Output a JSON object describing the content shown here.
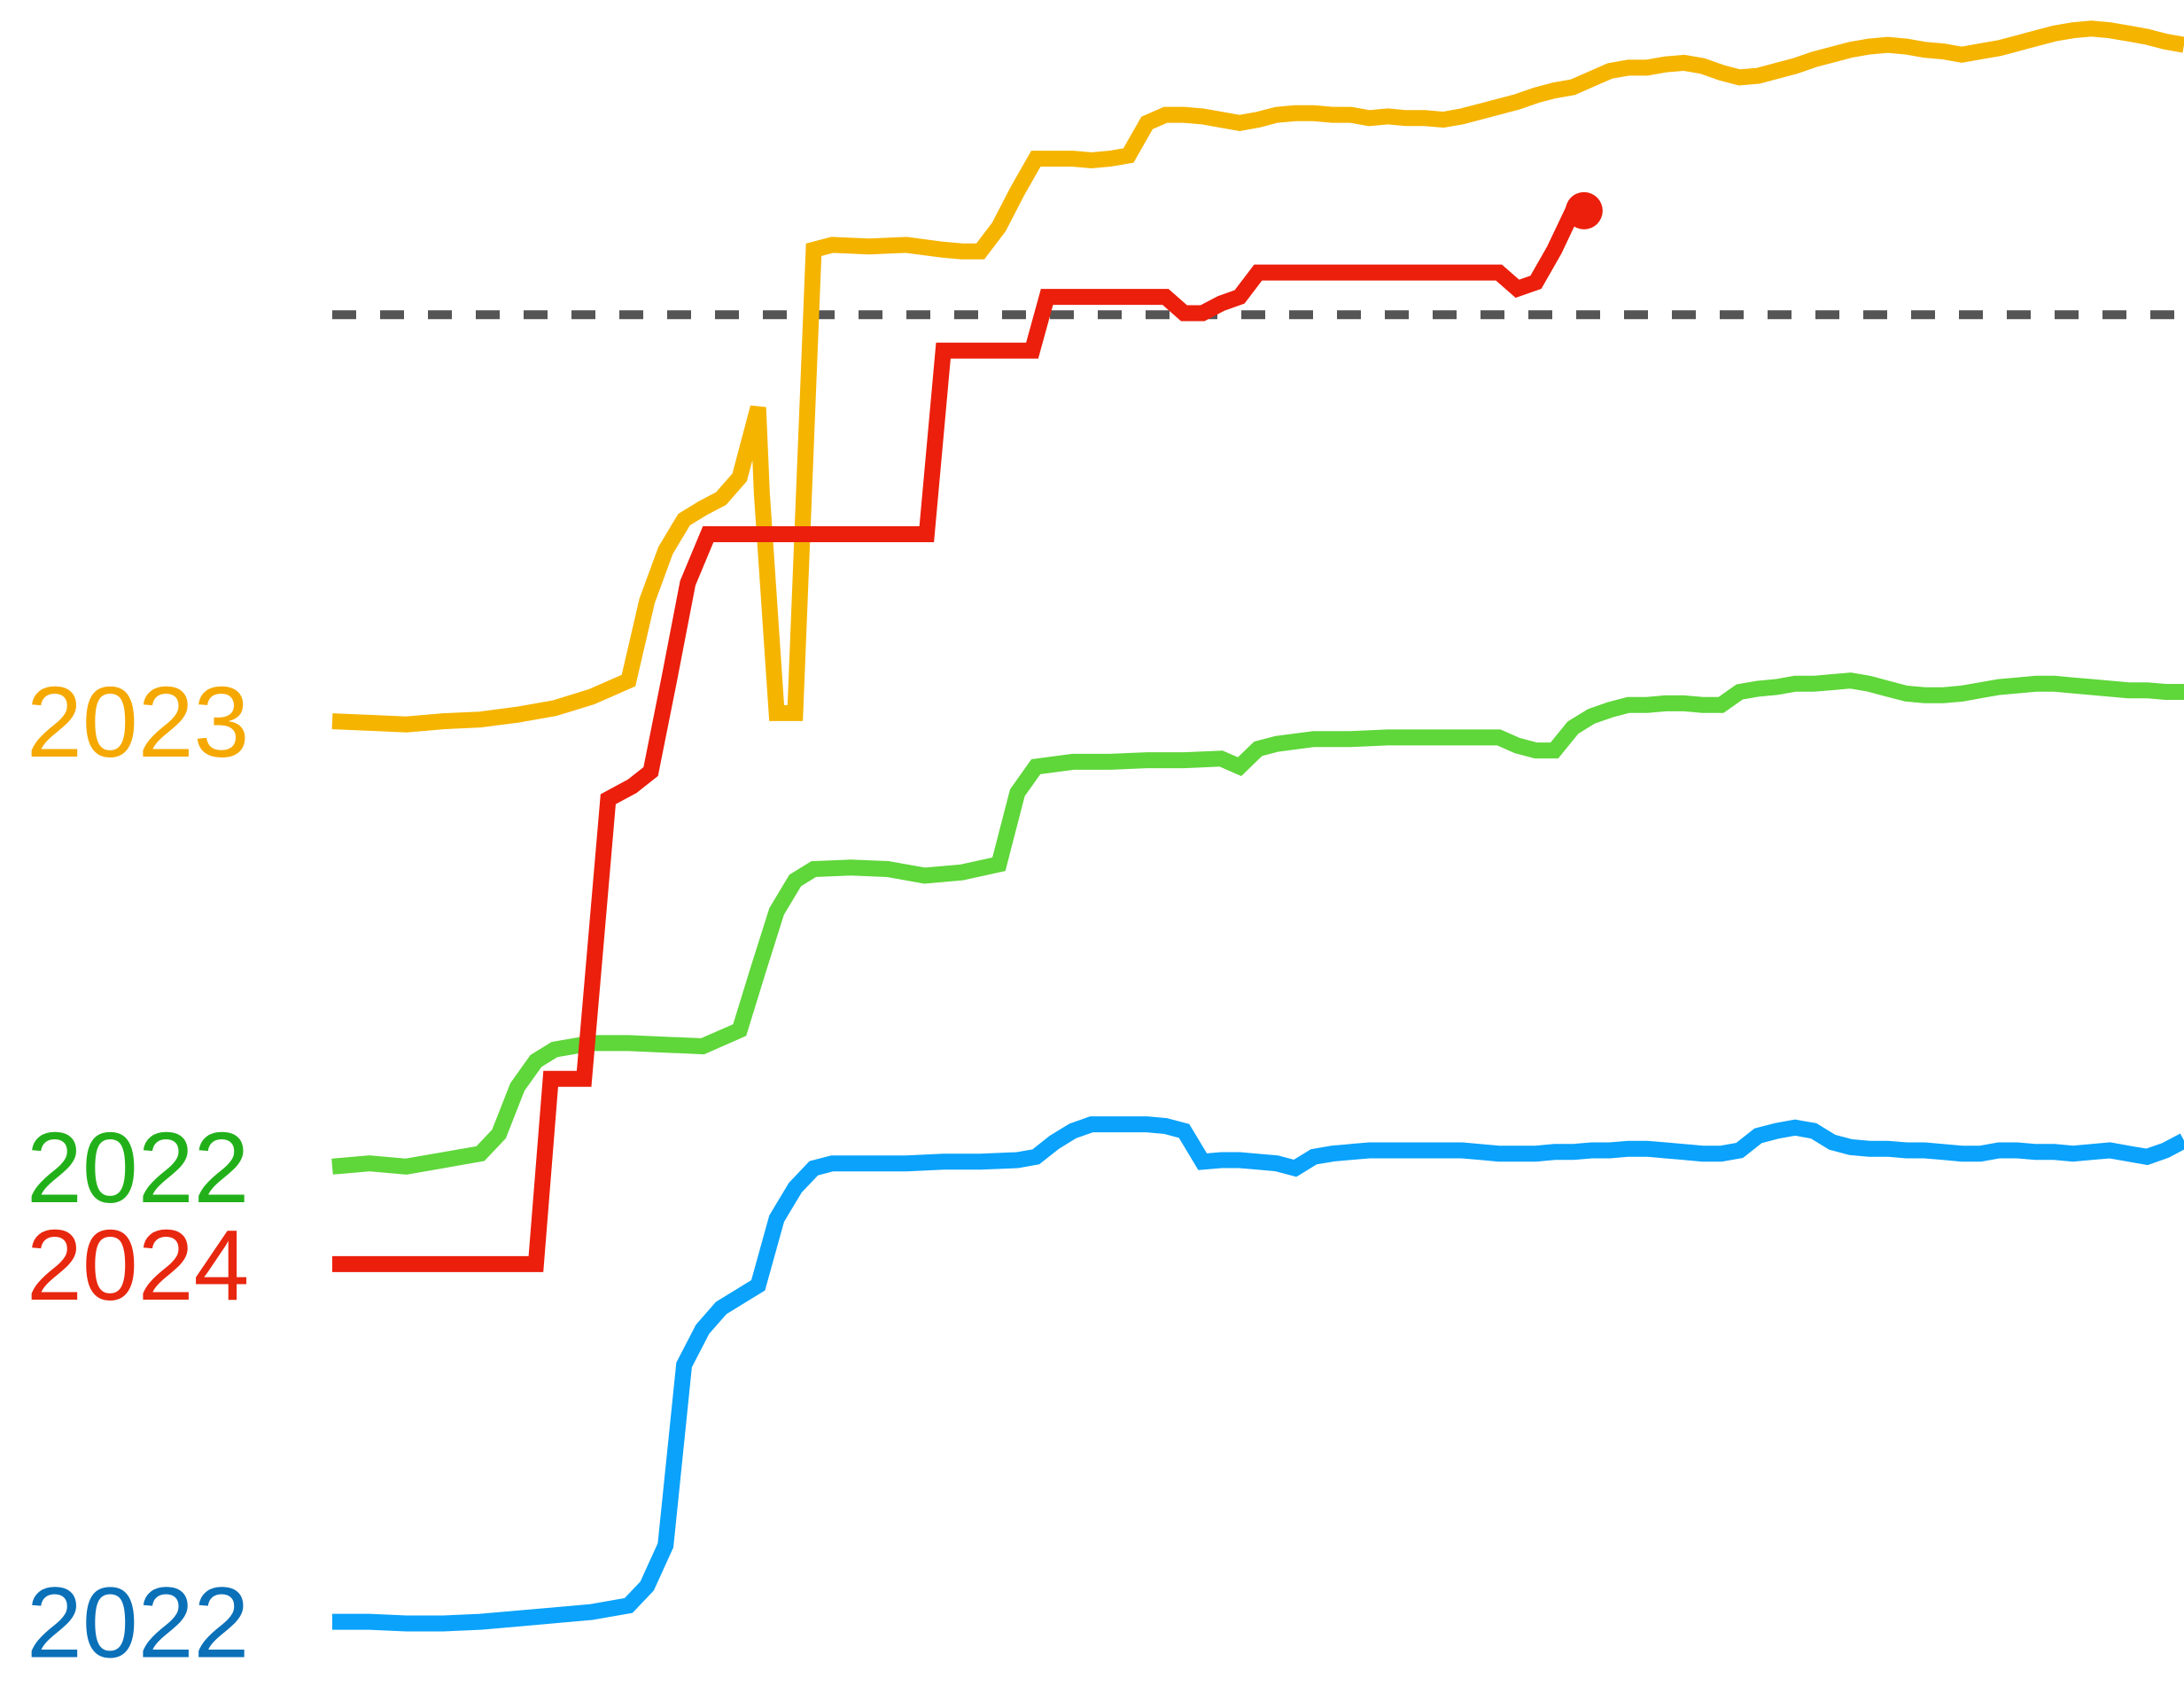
{
  "chart_data": {
    "type": "line",
    "title": "",
    "xlabel": "",
    "ylabel": "",
    "grid": false,
    "legend": "direct labels at left end of each line",
    "x_index_range": [
      0,
      100
    ],
    "ylim": [
      0,
      100
    ],
    "reference_line": {
      "y": 82,
      "style": "dashed",
      "color": "#555555"
    },
    "series": [
      {
        "name": "2023",
        "line_color": "#f5b400",
        "label_color": "#f5a800",
        "end_marker": false,
        "points": [
          [
            0,
            57.0
          ],
          [
            2,
            56.9
          ],
          [
            4,
            56.8
          ],
          [
            6,
            57.0
          ],
          [
            8,
            57.1
          ],
          [
            10,
            57.4
          ],
          [
            12,
            57.8
          ],
          [
            14,
            58.5
          ],
          [
            16,
            59.5
          ],
          [
            17,
            64.4
          ],
          [
            18,
            67.5
          ],
          [
            19,
            69.4
          ],
          [
            20,
            70.1
          ],
          [
            21,
            70.7
          ],
          [
            22,
            72.0
          ],
          [
            23,
            76.3
          ],
          [
            23.2,
            71.0
          ],
          [
            24,
            57.5
          ],
          [
            25,
            57.5
          ],
          [
            26,
            86.0
          ],
          [
            27,
            86.3
          ],
          [
            29,
            86.2
          ],
          [
            31,
            86.3
          ],
          [
            33,
            86.0
          ],
          [
            34,
            85.9
          ],
          [
            35,
            85.9
          ],
          [
            36,
            87.4
          ],
          [
            37,
            89.6
          ],
          [
            38,
            91.6
          ],
          [
            39,
            91.6
          ],
          [
            40,
            91.6
          ],
          [
            41,
            91.5
          ],
          [
            42,
            91.6
          ],
          [
            43,
            91.8
          ],
          [
            44,
            93.8
          ],
          [
            45,
            94.3
          ],
          [
            46,
            94.3
          ],
          [
            47,
            94.2
          ],
          [
            48,
            94.0
          ],
          [
            49,
            93.8
          ],
          [
            50,
            94.0
          ],
          [
            51,
            94.3
          ],
          [
            52,
            94.4
          ],
          [
            53,
            94.4
          ],
          [
            54,
            94.3
          ],
          [
            55,
            94.3
          ],
          [
            56,
            94.1
          ],
          [
            57,
            94.2
          ],
          [
            58,
            94.1
          ],
          [
            59,
            94.1
          ],
          [
            60,
            94.0
          ],
          [
            61,
            94.2
          ],
          [
            62,
            94.5
          ],
          [
            63,
            94.8
          ],
          [
            64,
            95.1
          ],
          [
            65,
            95.5
          ],
          [
            66,
            95.8
          ],
          [
            67,
            96.0
          ],
          [
            68,
            96.5
          ],
          [
            69,
            97.0
          ],
          [
            70,
            97.2
          ],
          [
            71,
            97.2
          ],
          [
            72,
            97.4
          ],
          [
            73,
            97.5
          ],
          [
            74,
            97.3
          ],
          [
            75,
            96.9
          ],
          [
            76,
            96.6
          ],
          [
            77,
            96.7
          ],
          [
            78,
            97.0
          ],
          [
            79,
            97.3
          ],
          [
            80,
            97.7
          ],
          [
            81,
            98.0
          ],
          [
            82,
            98.3
          ],
          [
            83,
            98.5
          ],
          [
            84,
            98.6
          ],
          [
            85,
            98.5
          ],
          [
            86,
            98.3
          ],
          [
            87,
            98.2
          ],
          [
            88,
            98.0
          ],
          [
            89,
            98.2
          ],
          [
            90,
            98.4
          ],
          [
            91,
            98.7
          ],
          [
            92,
            99.0
          ],
          [
            93,
            99.3
          ],
          [
            94,
            99.5
          ],
          [
            95,
            99.6
          ],
          [
            96,
            99.5
          ],
          [
            97,
            99.3
          ],
          [
            98,
            99.1
          ],
          [
            99,
            98.8
          ],
          [
            100,
            98.6
          ]
        ]
      },
      {
        "name": "2022",
        "line_color": "#5fd63a",
        "label_color": "#22b01a",
        "end_marker": false,
        "points": [
          [
            0,
            29.6
          ],
          [
            2,
            29.8
          ],
          [
            4,
            29.6
          ],
          [
            6,
            30.0
          ],
          [
            8,
            30.4
          ],
          [
            9,
            31.6
          ],
          [
            10,
            34.5
          ],
          [
            11,
            36.1
          ],
          [
            12,
            36.8
          ],
          [
            14,
            37.2
          ],
          [
            16,
            37.2
          ],
          [
            18,
            37.1
          ],
          [
            20,
            37.0
          ],
          [
            22,
            38.0
          ],
          [
            23,
            41.7
          ],
          [
            24,
            45.3
          ],
          [
            25,
            47.2
          ],
          [
            26,
            47.9
          ],
          [
            28,
            48.0
          ],
          [
            30,
            47.9
          ],
          [
            32,
            47.5
          ],
          [
            34,
            47.7
          ],
          [
            36,
            48.2
          ],
          [
            37,
            52.6
          ],
          [
            38,
            54.2
          ],
          [
            40,
            54.5
          ],
          [
            42,
            54.5
          ],
          [
            44,
            54.6
          ],
          [
            46,
            54.6
          ],
          [
            48,
            54.7
          ],
          [
            49,
            54.2
          ],
          [
            50,
            55.3
          ],
          [
            51,
            55.6
          ],
          [
            53,
            55.9
          ],
          [
            55,
            55.9
          ],
          [
            57,
            56.0
          ],
          [
            59,
            56.0
          ],
          [
            61,
            56.0
          ],
          [
            63,
            56.0
          ],
          [
            64,
            55.5
          ],
          [
            65,
            55.2
          ],
          [
            66,
            55.2
          ],
          [
            67,
            56.6
          ],
          [
            68,
            57.3
          ],
          [
            69,
            57.7
          ],
          [
            70,
            58.0
          ],
          [
            71,
            58.0
          ],
          [
            72,
            58.1
          ],
          [
            73,
            58.1
          ],
          [
            74,
            58.0
          ],
          [
            75,
            58.0
          ],
          [
            76,
            58.8
          ],
          [
            77,
            59.0
          ],
          [
            78,
            59.1
          ],
          [
            79,
            59.3
          ],
          [
            80,
            59.3
          ],
          [
            81,
            59.4
          ],
          [
            82,
            59.5
          ],
          [
            83,
            59.3
          ],
          [
            84,
            59.0
          ],
          [
            85,
            58.7
          ],
          [
            86,
            58.6
          ],
          [
            87,
            58.6
          ],
          [
            88,
            58.7
          ],
          [
            89,
            58.9
          ],
          [
            90,
            59.1
          ],
          [
            91,
            59.2
          ],
          [
            92,
            59.3
          ],
          [
            93,
            59.3
          ],
          [
            94,
            59.2
          ],
          [
            95,
            59.1
          ],
          [
            96,
            59.0
          ],
          [
            97,
            58.9
          ],
          [
            98,
            58.9
          ],
          [
            99,
            58.8
          ],
          [
            100,
            58.8
          ]
        ]
      },
      {
        "name": "2024",
        "line_color": "#eb1f0c",
        "label_color": "#e8270f",
        "end_marker": true,
        "points": [
          [
            0,
            23.6
          ],
          [
            2,
            23.6
          ],
          [
            4,
            23.6
          ],
          [
            6,
            23.6
          ],
          [
            8,
            23.6
          ],
          [
            10,
            23.6
          ],
          [
            11,
            23.6
          ],
          [
            11.8,
            35.0
          ],
          [
            13.6,
            35.0
          ],
          [
            14.9,
            52.2
          ],
          [
            16.2,
            53.0
          ],
          [
            17.2,
            53.9
          ],
          [
            18.2,
            59.6
          ],
          [
            19.2,
            65.5
          ],
          [
            20.3,
            68.5
          ],
          [
            22,
            68.5
          ],
          [
            24,
            68.5
          ],
          [
            26,
            68.5
          ],
          [
            28,
            68.5
          ],
          [
            30,
            68.5
          ],
          [
            32.1,
            68.5
          ],
          [
            33.0,
            79.8
          ],
          [
            34.5,
            79.8
          ],
          [
            36,
            79.8
          ],
          [
            37.8,
            79.8
          ],
          [
            38.6,
            83.1
          ],
          [
            40,
            83.1
          ],
          [
            42,
            83.1
          ],
          [
            44,
            83.1
          ],
          [
            45,
            83.1
          ],
          [
            46,
            82.1
          ],
          [
            47,
            82.1
          ],
          [
            48,
            82.7
          ],
          [
            49,
            83.1
          ],
          [
            50,
            84.6
          ],
          [
            52,
            84.6
          ],
          [
            54,
            84.6
          ],
          [
            56,
            84.6
          ],
          [
            58,
            84.6
          ],
          [
            60,
            84.6
          ],
          [
            62,
            84.6
          ],
          [
            63,
            84.6
          ],
          [
            64,
            83.6
          ],
          [
            65,
            84.0
          ],
          [
            66,
            86.0
          ],
          [
            67,
            88.4
          ],
          [
            67.6,
            88.4
          ]
        ]
      },
      {
        "name": "2022",
        "line_color": "#0aa2fb",
        "label_color": "#0a70b8",
        "end_marker": false,
        "points": [
          [
            0,
            1.6
          ],
          [
            2,
            1.6
          ],
          [
            4,
            1.5
          ],
          [
            6,
            1.5
          ],
          [
            8,
            1.6
          ],
          [
            10,
            1.8
          ],
          [
            12,
            2.0
          ],
          [
            14,
            2.2
          ],
          [
            16,
            2.6
          ],
          [
            17,
            3.8
          ],
          [
            18,
            6.3
          ],
          [
            19,
            17.4
          ],
          [
            20,
            19.6
          ],
          [
            21,
            20.9
          ],
          [
            22,
            21.6
          ],
          [
            23,
            22.3
          ],
          [
            24,
            26.4
          ],
          [
            25,
            28.3
          ],
          [
            26,
            29.5
          ],
          [
            27,
            29.8
          ],
          [
            29,
            29.8
          ],
          [
            31,
            29.8
          ],
          [
            33,
            29.9
          ],
          [
            35,
            29.9
          ],
          [
            37,
            30.0
          ],
          [
            38,
            30.2
          ],
          [
            39,
            31.1
          ],
          [
            40,
            31.8
          ],
          [
            41,
            32.2
          ],
          [
            42,
            32.2
          ],
          [
            43,
            32.2
          ],
          [
            44,
            32.2
          ],
          [
            45,
            32.1
          ],
          [
            46,
            31.8
          ],
          [
            47,
            29.9
          ],
          [
            48,
            30.0
          ],
          [
            49,
            30.0
          ],
          [
            50,
            29.9
          ],
          [
            51,
            29.8
          ],
          [
            52,
            29.5
          ],
          [
            53,
            30.2
          ],
          [
            54,
            30.4
          ],
          [
            55,
            30.5
          ],
          [
            56,
            30.6
          ],
          [
            57,
            30.6
          ],
          [
            58,
            30.6
          ],
          [
            59,
            30.6
          ],
          [
            60,
            30.6
          ],
          [
            61,
            30.6
          ],
          [
            62,
            30.5
          ],
          [
            63,
            30.4
          ],
          [
            64,
            30.4
          ],
          [
            65,
            30.4
          ],
          [
            66,
            30.5
          ],
          [
            67,
            30.5
          ],
          [
            68,
            30.6
          ],
          [
            69,
            30.6
          ],
          [
            70,
            30.7
          ],
          [
            71,
            30.7
          ],
          [
            72,
            30.6
          ],
          [
            73,
            30.5
          ],
          [
            74,
            30.4
          ],
          [
            75,
            30.4
          ],
          [
            76,
            30.6
          ],
          [
            77,
            31.5
          ],
          [
            78,
            31.8
          ],
          [
            79,
            32.0
          ],
          [
            80,
            31.8
          ],
          [
            81,
            31.1
          ],
          [
            82,
            30.8
          ],
          [
            83,
            30.7
          ],
          [
            84,
            30.7
          ],
          [
            85,
            30.6
          ],
          [
            86,
            30.6
          ],
          [
            87,
            30.5
          ],
          [
            88,
            30.4
          ],
          [
            89,
            30.4
          ],
          [
            90,
            30.6
          ],
          [
            91,
            30.6
          ],
          [
            92,
            30.5
          ],
          [
            93,
            30.5
          ],
          [
            94,
            30.4
          ],
          [
            95,
            30.5
          ],
          [
            96,
            30.6
          ],
          [
            97,
            30.4
          ],
          [
            98,
            30.2
          ],
          [
            99,
            30.6
          ],
          [
            100,
            31.2
          ]
        ]
      }
    ]
  }
}
